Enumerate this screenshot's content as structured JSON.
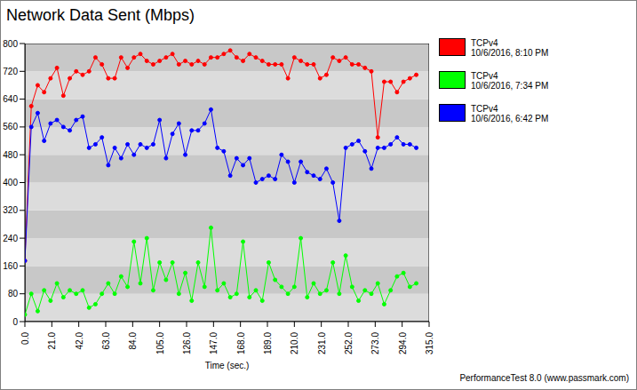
{
  "chart_data": {
    "type": "line",
    "title": "Network Data Sent (Mbps)",
    "x_label": "Time (sec.)",
    "annotations": [
      "PerformanceTest 8.0 (www.passmark.com)"
    ],
    "x": [
      0,
      5,
      10,
      15,
      20,
      25,
      30,
      35,
      40,
      45,
      50,
      55,
      60,
      65,
      70,
      75,
      80,
      85,
      90,
      95,
      100,
      105,
      110,
      115,
      120,
      125,
      130,
      135,
      140,
      145,
      150,
      155,
      160,
      165,
      170,
      175,
      180,
      185,
      190,
      195,
      200,
      205,
      210,
      215,
      220,
      225,
      230,
      235,
      240,
      245,
      250,
      255,
      260,
      265,
      270,
      275,
      280,
      285,
      290,
      295,
      300,
      305
    ],
    "series": [
      {
        "name": "TCPv4\n10/6/2016, 8:10 PM",
        "color": "#ff0000",
        "marker": "circle",
        "values": [
          175,
          620,
          680,
          660,
          700,
          730,
          650,
          700,
          720,
          710,
          720,
          760,
          740,
          700,
          700,
          760,
          730,
          760,
          770,
          750,
          740,
          750,
          760,
          770,
          740,
          750,
          740,
          750,
          740,
          760,
          760,
          770,
          780,
          760,
          750,
          770,
          760,
          750,
          740,
          740,
          740,
          700,
          760,
          750,
          740,
          740,
          700,
          710,
          760,
          750,
          760,
          740,
          740,
          730,
          720,
          530,
          690,
          690,
          660,
          690,
          700,
          710
        ]
      },
      {
        "name": "TCPv4\n10/6/2016, 7:34 PM",
        "color": "#00ff00",
        "marker": "circle",
        "values": [
          20,
          80,
          30,
          90,
          60,
          110,
          70,
          90,
          80,
          90,
          40,
          50,
          80,
          110,
          80,
          130,
          100,
          230,
          110,
          240,
          90,
          170,
          120,
          170,
          80,
          140,
          60,
          170,
          100,
          270,
          90,
          110,
          70,
          80,
          230,
          70,
          90,
          60,
          170,
          120,
          100,
          80,
          100,
          240,
          70,
          110,
          80,
          90,
          170,
          80,
          190,
          100,
          60,
          90,
          80,
          110,
          50,
          90,
          130,
          140,
          100,
          110
        ]
      },
      {
        "name": "TCPv4\n10/6/2016, 6:42 PM",
        "color": "#0000ff",
        "marker": "circle",
        "values": [
          175,
          560,
          600,
          520,
          570,
          580,
          560,
          550,
          580,
          590,
          500,
          510,
          530,
          450,
          500,
          470,
          510,
          480,
          510,
          500,
          510,
          580,
          470,
          540,
          570,
          480,
          550,
          550,
          570,
          610,
          500,
          490,
          420,
          470,
          450,
          470,
          400,
          410,
          420,
          410,
          480,
          460,
          400,
          460,
          430,
          420,
          410,
          440,
          400,
          290,
          500,
          510,
          520,
          490,
          440,
          500,
          500,
          510,
          530,
          510,
          510,
          500
        ]
      }
    ],
    "xlim": [
      0,
      315
    ],
    "xticks": [
      {
        "value": 0,
        "label": "0.0"
      },
      {
        "value": 21,
        "label": "21.0"
      },
      {
        "value": 42,
        "label": "42.0"
      },
      {
        "value": 63,
        "label": "63.0"
      },
      {
        "value": 84,
        "label": "84.0"
      },
      {
        "value": 105,
        "label": "105.0"
      },
      {
        "value": 126,
        "label": "126.0"
      },
      {
        "value": 147,
        "label": "147.0"
      },
      {
        "value": 168,
        "label": "168.0"
      },
      {
        "value": 189,
        "label": "189.0"
      },
      {
        "value": 210,
        "label": "210.0"
      },
      {
        "value": 231,
        "label": "231.0"
      },
      {
        "value": 252,
        "label": "252.0"
      },
      {
        "value": 273,
        "label": "273.0"
      },
      {
        "value": 294,
        "label": "294.0"
      },
      {
        "value": 315,
        "label": "315.0"
      }
    ],
    "ylim": [
      0,
      800
    ],
    "yticks": [
      0,
      80,
      160,
      240,
      320,
      400,
      480,
      560,
      640,
      720,
      800
    ],
    "grid": true,
    "legend": "right"
  }
}
